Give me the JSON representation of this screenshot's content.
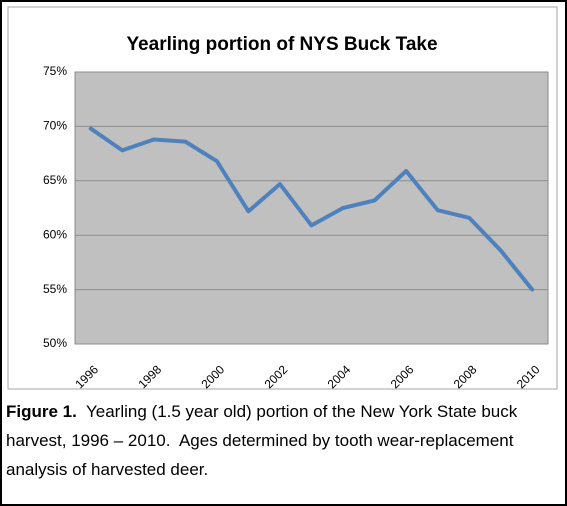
{
  "chart_data": {
    "type": "line",
    "title": "Yearling portion of NYS Buck Take",
    "categories": [
      "1996",
      null,
      "1998",
      null,
      "2000",
      null,
      "2002",
      null,
      "2004",
      null,
      "2006",
      null,
      "2008",
      null,
      "2010"
    ],
    "series": [
      {
        "color": "#4f81bd",
        "values": [
          69.8,
          67.8,
          68.8,
          68.6,
          66.8,
          62.2,
          64.7,
          60.9,
          62.5,
          63.2,
          65.9,
          62.3,
          61.6,
          58.6,
          55.0
        ]
      }
    ],
    "ylim": [
      50,
      75
    ],
    "yticks": [
      {
        "value": 50,
        "label": "50%"
      },
      {
        "value": 55,
        "label": "55%"
      },
      {
        "value": 60,
        "label": "60%"
      },
      {
        "value": 65,
        "label": "65%"
      },
      {
        "value": 70,
        "label": "70%"
      },
      {
        "value": 75,
        "label": "75%"
      }
    ],
    "grid": true,
    "plot_background": "#c0c0c0"
  },
  "caption": {
    "label": "Figure 1.",
    "text": "  Yearling (1.5 year old) portion of the New York State buck harvest, 1996 – 2010.  Ages determined by tooth wear-replacement analysis of harvested deer."
  }
}
